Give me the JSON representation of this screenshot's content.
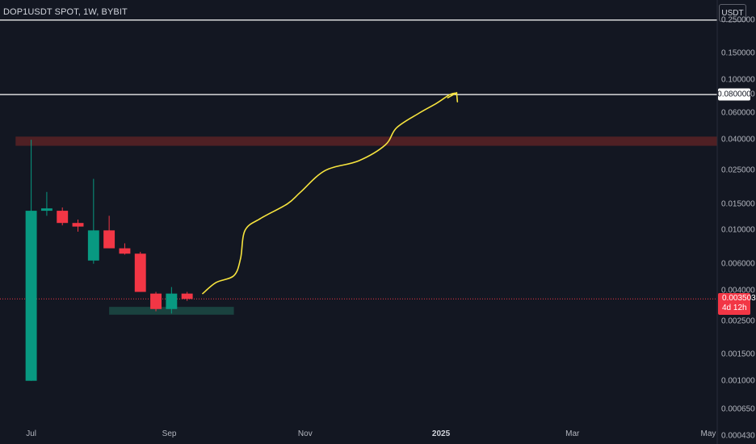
{
  "header": {
    "symbol_title": "DOP1USDT SPOT, 1W, BYBIT",
    "currency_label": "USDT"
  },
  "colors": {
    "background": "#131722",
    "up": "#089981",
    "down": "#f23645",
    "resistance_zone": "#5b2225",
    "support_zone": "#1c4743",
    "drawing": "#f7e43e",
    "horizontal_line": "#ffffff",
    "price_line": "#f23645"
  },
  "price_tags": {
    "level_label": "0.080000",
    "last_price": "0.003503",
    "countdown": "4d 12h"
  },
  "chart_data": {
    "type": "candlestick",
    "title": "DOP1USDT SPOT, 1W, BYBIT",
    "y_scale": "log",
    "y_range": [
      0.00038,
      0.34
    ],
    "x_range": [
      "2024-06-17",
      "2025-05-05"
    ],
    "y_ticks": [
      "0.250000",
      "0.150000",
      "0.100000",
      "0.080000",
      "0.060000",
      "0.040000",
      "0.025000",
      "0.015000",
      "0.010000",
      "0.006000",
      "0.004000",
      "0.002500",
      "0.001500",
      "0.001000",
      "0.000650",
      "0.000430"
    ],
    "x_ticks": [
      {
        "label": "Jul",
        "date": "2024-07-01",
        "year": false
      },
      {
        "label": "Sep",
        "date": "2024-09-01",
        "year": false
      },
      {
        "label": "Nov",
        "date": "2024-11-01",
        "year": false
      },
      {
        "label": "2025",
        "date": "2025-01-01",
        "year": true
      },
      {
        "label": "Mar",
        "date": "2025-03-01",
        "year": false
      },
      {
        "label": "May",
        "date": "2025-05-01",
        "year": false
      }
    ],
    "candles": [
      {
        "date": "2024-07-01",
        "open": 0.001,
        "high": 0.04,
        "low": 0.001,
        "close": 0.0135
      },
      {
        "date": "2024-07-08",
        "open": 0.0135,
        "high": 0.018,
        "low": 0.0125,
        "close": 0.014
      },
      {
        "date": "2024-07-15",
        "open": 0.0135,
        "high": 0.0142,
        "low": 0.0108,
        "close": 0.0112
      },
      {
        "date": "2024-07-22",
        "open": 0.0112,
        "high": 0.0118,
        "low": 0.0098,
        "close": 0.0106
      },
      {
        "date": "2024-07-29",
        "open": 0.0063,
        "high": 0.022,
        "low": 0.006,
        "close": 0.01
      },
      {
        "date": "2024-08-05",
        "open": 0.01,
        "high": 0.0125,
        "low": 0.0076,
        "close": 0.0076
      },
      {
        "date": "2024-08-12",
        "open": 0.0076,
        "high": 0.0082,
        "low": 0.0069,
        "close": 0.007
      },
      {
        "date": "2024-08-19",
        "open": 0.007,
        "high": 0.0072,
        "low": 0.0039,
        "close": 0.0039
      },
      {
        "date": "2024-08-26",
        "open": 0.0038,
        "high": 0.0039,
        "low": 0.0029,
        "close": 0.003
      },
      {
        "date": "2024-09-02",
        "open": 0.003,
        "high": 0.0042,
        "low": 0.0028,
        "close": 0.0038
      },
      {
        "date": "2024-09-09",
        "open": 0.0038,
        "high": 0.0039,
        "low": 0.0034,
        "close": 0.0035
      }
    ],
    "horizontal_levels": [
      0.25,
      0.08
    ],
    "current_price": 0.003503,
    "resistance_zone": {
      "from": "2024-06-24",
      "to": "2025-05-05",
      "low": 0.0365,
      "high": 0.042
    },
    "support_zone": {
      "from": "2024-08-05",
      "to": "2024-09-30",
      "low": 0.00275,
      "high": 0.0031
    },
    "projection_path": [
      [
        "2024-09-16",
        0.0038
      ],
      [
        "2024-09-22",
        0.0045
      ],
      [
        "2024-09-30",
        0.005
      ],
      [
        "2024-10-03",
        0.0065
      ],
      [
        "2024-10-05",
        0.01
      ],
      [
        "2024-10-12",
        0.012
      ],
      [
        "2024-10-24",
        0.015
      ],
      [
        "2024-10-30",
        0.018
      ],
      [
        "2024-11-10",
        0.025
      ],
      [
        "2024-11-25",
        0.029
      ],
      [
        "2024-12-07",
        0.037
      ],
      [
        "2024-12-12",
        0.048
      ],
      [
        "2024-12-22",
        0.06
      ],
      [
        "2024-12-30",
        0.07
      ],
      [
        "2025-01-05",
        0.08
      ],
      [
        "2025-01-08",
        0.082
      ]
    ],
    "arrowhead_at": [
      "2025-01-08",
      0.082
    ]
  }
}
